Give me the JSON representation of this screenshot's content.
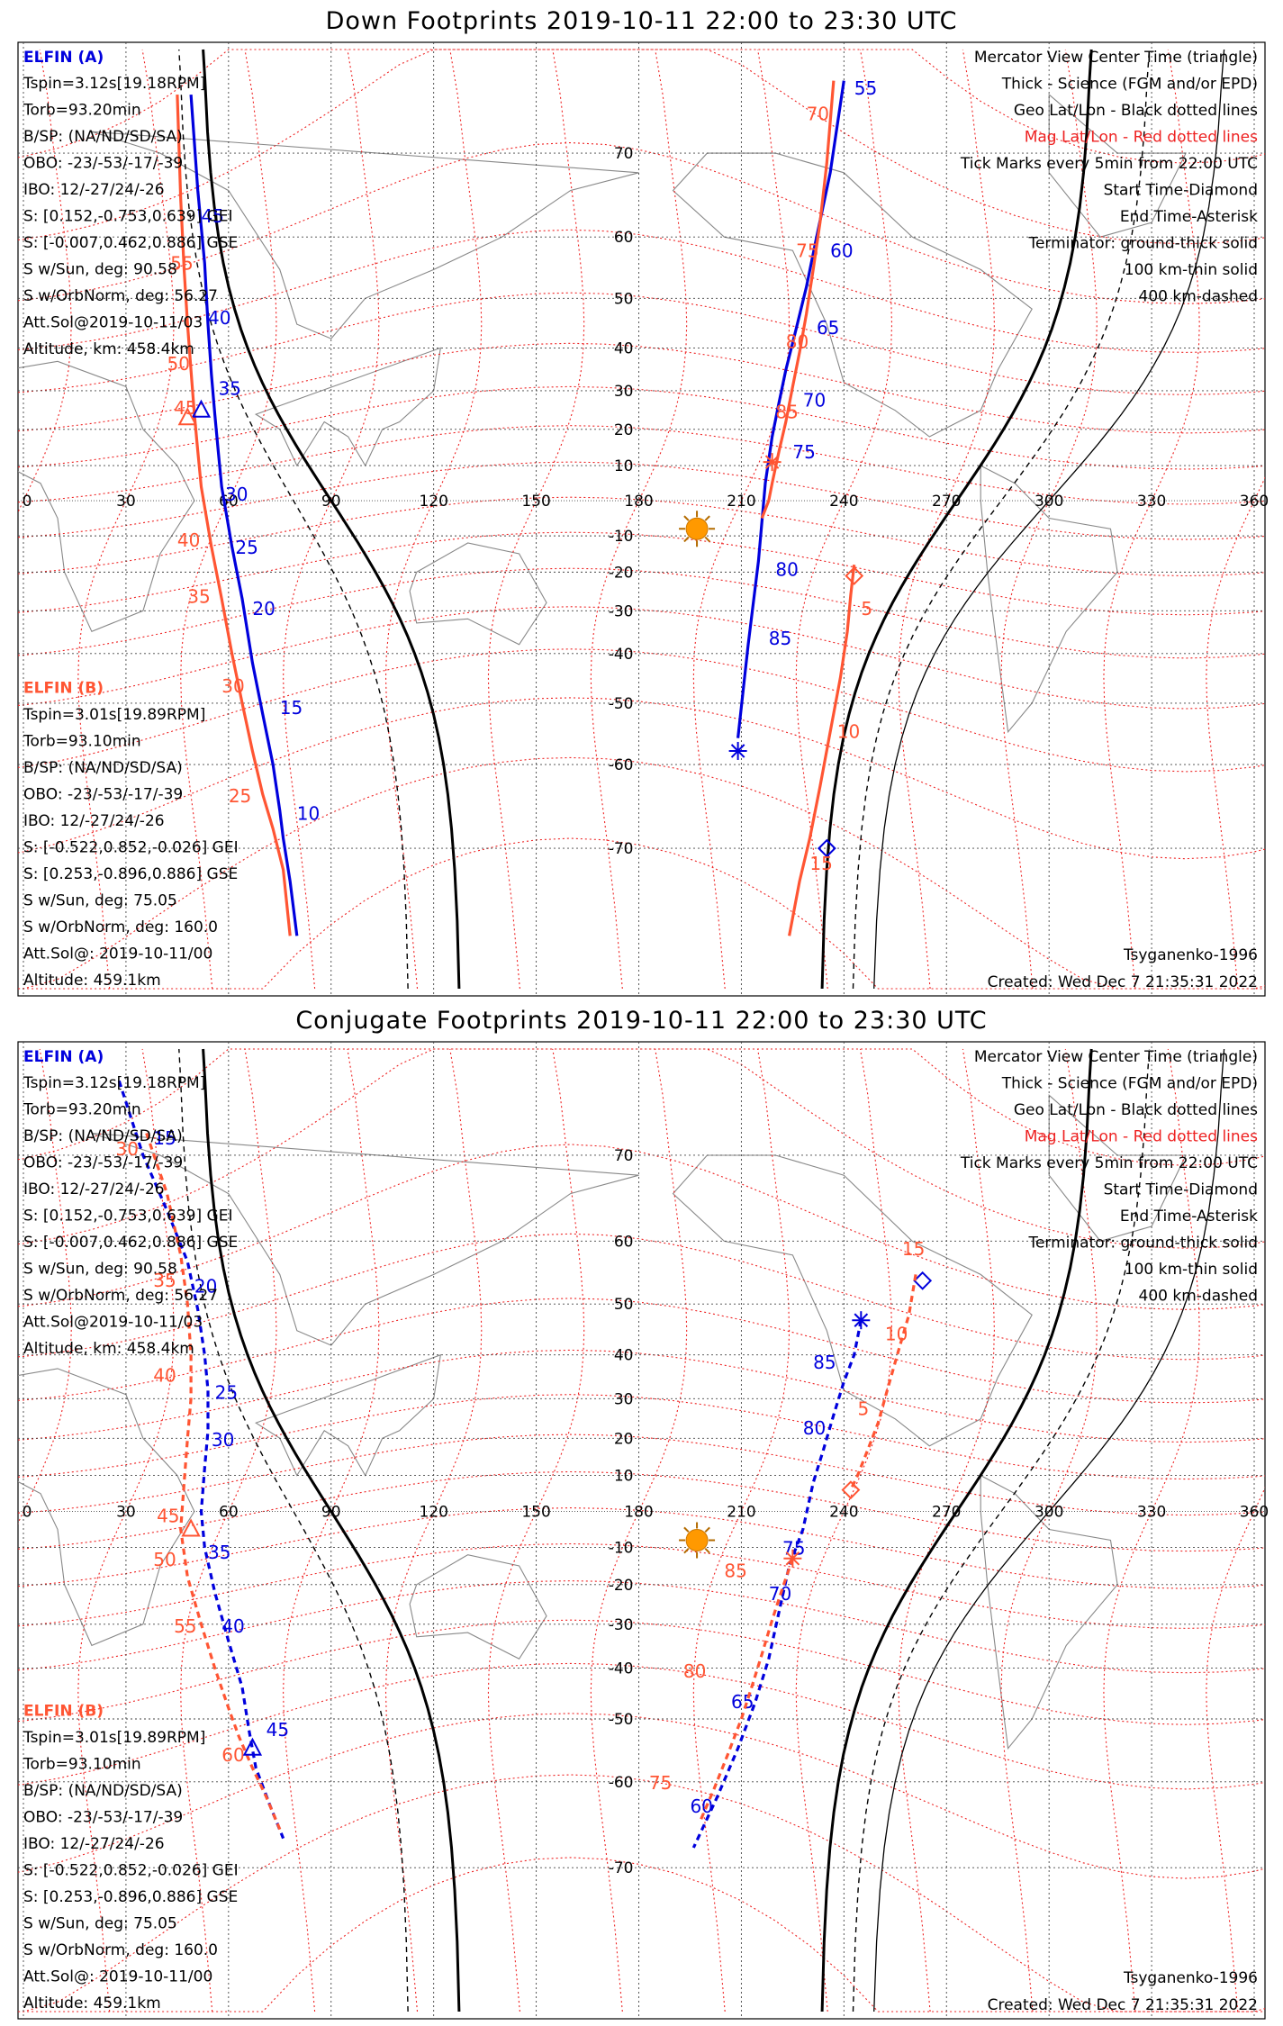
{
  "colors": {
    "spacecraft_a": "#0000dd",
    "spacecraft_b": "#ff5533",
    "geo_grid": "#444444",
    "mag_grid": "#ee2222",
    "terminator": "#000000",
    "sun": "#ff9900",
    "coastline": "#888888"
  },
  "legend": {
    "lines": [
      {
        "text": "Mercator View Center Time (triangle)",
        "color": "#000000"
      },
      {
        "text": "Thick - Science (FGM and/or EPD)",
        "color": "#000000"
      },
      {
        "text": "Geo Lat/Lon - Black dotted lines",
        "color": "#000000"
      },
      {
        "text": "Mag Lat/Lon - Red dotted lines",
        "color": "#ee2222"
      },
      {
        "text": "Tick Marks every 5min from 22:00 UTC",
        "color": "#000000"
      },
      {
        "text": "Start Time-Diamond",
        "color": "#000000"
      },
      {
        "text": "End Time-Asterisk",
        "color": "#000000"
      },
      {
        "text": "Terminator: ground-thick solid",
        "color": "#000000"
      },
      {
        "text": "100 km-thin solid",
        "color": "#000000"
      },
      {
        "text": "400 km-dashed",
        "color": "#000000"
      }
    ]
  },
  "elfin_a": {
    "name": "ELFIN (A)",
    "lines": [
      "Tspin=3.12s[19.18RPM]",
      "Torb=93.20min",
      "B/SP: (NA/ND/SD/SA)",
      "OBO: -23/-53/-17/-39",
      "IBO: 12/-27/24/-26",
      "S: [0.152,-0.753,0.639] GEI",
      "S: [-0.007,0.462,0.886] GSE",
      "S w/Sun, deg: 90.58",
      "S w/OrbNorm, deg: 56.27",
      "Att.Sol@2019-10-11/03",
      "Altitude, km: 458.4km"
    ]
  },
  "elfin_b": {
    "name": "ELFIN (B)",
    "lines": [
      "Tspin=3.01s[19.89RPM]",
      "Torb=93.10min",
      "B/SP: (NA/ND/SD/SA)",
      "OBO: -23/-53/-17/-39",
      "IBO: 12/-27/24/-26",
      "S: [-0.522,0.852,-0.026] GEI",
      "S: [0.253,-0.896,0.886] GSE",
      "S w/Sun, deg: 75.05",
      "S w/OrbNorm, deg: 160.0",
      "Att.Sol@: 2019-10-11/00",
      "Altitude: 459.1km"
    ]
  },
  "model": "Tsyganenko-1996",
  "created": "Created: Wed Dec  7 21:35:31 2022",
  "chart_data": [
    {
      "type": "line",
      "title": "Down Footprints 2019-10-11 22:00 to 23:30 UTC",
      "projection": "mercator",
      "x_ticks": [
        0,
        30,
        60,
        90,
        120,
        150,
        180,
        210,
        240,
        270,
        300,
        330,
        360
      ],
      "y_ticks": [
        70,
        60,
        50,
        40,
        30,
        20,
        10,
        -10,
        -20,
        -30,
        -40,
        -50,
        -60,
        -70
      ],
      "sun": {
        "lon": 197,
        "lat": -8
      },
      "series": [
        {
          "name": "ELFIN (A)",
          "style": "solid",
          "x": [
            48,
            50,
            52,
            54,
            55,
            56,
            57,
            58,
            59,
            63,
            66,
            69,
            73,
            77,
            80
          ],
          "y": [
            75,
            62,
            48,
            34,
            20,
            10,
            0,
            -10,
            -22,
            -35,
            -50,
            -60,
            -66,
            -72,
            -77
          ],
          "segments": [
            {
              "x": [
                49,
                51,
                53,
                54,
                55,
                56,
                57,
                58,
                61,
                64,
                67,
                70,
                73,
                75,
                76,
                78,
                80
              ],
              "y": [
                75,
                66,
                56,
                45,
                34,
                24,
                14,
                4,
                -13,
                -27,
                -42,
                -52,
                -60,
                -66,
                -69,
                -73,
                -77
              ]
            },
            {
              "x": [
                240,
                236,
                232,
                229,
                226,
                223,
                221,
                219,
                217,
                215,
                212,
                209
              ],
              "y": [
                76,
                68,
                60,
                52,
                44,
                35,
                27,
                18,
                5,
                -17,
                -38,
                -56
              ]
            }
          ],
          "tick_labels": [
            {
              "label": "55",
              "lon": 243,
              "lat": 75
            },
            {
              "label": "60",
              "lon": 236,
              "lat": 57
            },
            {
              "label": "65",
              "lon": 232,
              "lat": 43
            },
            {
              "label": "70",
              "lon": 228,
              "lat": 26
            },
            {
              "label": "75",
              "lon": 225,
              "lat": 12
            },
            {
              "label": "80",
              "lon": 220,
              "lat": -21
            },
            {
              "label": "85",
              "lon": 218,
              "lat": -38
            },
            {
              "label": "45",
              "lon": 52,
              "lat": 62
            },
            {
              "label": "40",
              "lon": 54,
              "lat": 45
            },
            {
              "label": "35",
              "lon": 57,
              "lat": 29
            },
            {
              "label": "30",
              "lon": 59,
              "lat": 0
            },
            {
              "label": "25",
              "lon": 62,
              "lat": -15
            },
            {
              "label": "20",
              "lon": 67,
              "lat": -31
            },
            {
              "label": "15",
              "lon": 75,
              "lat": -52
            },
            {
              "label": "10",
              "lon": 80,
              "lat": -67
            }
          ],
          "start": {
            "lon": 235,
            "lat": -70
          },
          "end": {
            "lon": 209,
            "lat": -58
          }
        },
        {
          "name": "ELFIN (B)",
          "style": "solid",
          "segments": [
            {
              "x": [
                45,
                46,
                47,
                48,
                49,
                50,
                51,
                52,
                55,
                58,
                61,
                64,
                67,
                70,
                73,
                76,
                78
              ],
              "y": [
                75,
                65,
                55,
                45,
                35,
                24,
                14,
                4,
                -13,
                -27,
                -40,
                -50,
                -58,
                -64,
                -68,
                -72,
                -77
              ]
            },
            {
              "x": [
                237,
                235,
                233,
                231,
                229,
                227,
                225,
                223,
                221,
                219,
                218,
                216
              ],
              "y": [
                76,
                69,
                62,
                55,
                47,
                39,
                31,
                22,
                14,
                5,
                0,
                -5
              ]
            },
            {
              "x": [
                243,
                242,
                241,
                239,
                236,
                233,
                230,
                227,
                224
              ],
              "y": [
                -18,
                -26,
                -35,
                -45,
                -55,
                -63,
                -69,
                -73,
                -77
              ]
            }
          ],
          "tick_labels": [
            {
              "label": "70",
              "lon": 229,
              "lat": 73
            },
            {
              "label": "75",
              "lon": 226,
              "lat": 57
            },
            {
              "label": "80",
              "lon": 223,
              "lat": 40
            },
            {
              "label": "85",
              "lon": 220,
              "lat": 23
            },
            {
              "label": "5",
              "lon": 245,
              "lat": -31
            },
            {
              "label": "10",
              "lon": 238,
              "lat": -56
            },
            {
              "label": "15",
              "lon": 230,
              "lat": -72
            },
            {
              "label": "55",
              "lon": 43,
              "lat": 55
            },
            {
              "label": "50",
              "lon": 42,
              "lat": 35
            },
            {
              "label": "45",
              "lon": 44,
              "lat": 24
            },
            {
              "label": "40",
              "lon": 45,
              "lat": -13
            },
            {
              "label": "35",
              "lon": 48,
              "lat": -28
            },
            {
              "label": "30",
              "lon": 58,
              "lat": -48
            },
            {
              "label": "25",
              "lon": 60,
              "lat": -65
            }
          ],
          "start": {
            "lon": 243,
            "lat": -21
          },
          "end": {
            "lon": 219,
            "lat": 11
          }
        }
      ],
      "view_center": [
        {
          "series": "ELFIN (A)",
          "lon": 52,
          "lat": 25
        },
        {
          "series": "ELFIN (B)",
          "lon": 48,
          "lat": 23
        }
      ]
    },
    {
      "type": "line",
      "title": "Conjugate Footprints 2019-10-11 22:00 to 23:30 UTC",
      "projection": "mercator",
      "x_ticks": [
        0,
        30,
        60,
        90,
        120,
        150,
        180,
        210,
        240,
        270,
        300,
        330,
        360
      ],
      "y_ticks": [
        70,
        60,
        50,
        40,
        30,
        20,
        10,
        -10,
        -20,
        -30,
        -40,
        -50,
        -60,
        -70
      ],
      "sun": {
        "lon": 197,
        "lat": -8
      },
      "series": [
        {
          "name": "ELFIN (A)",
          "style": "dashed",
          "segments": [
            {
              "x": [
                28,
                35,
                42,
                48,
                51,
                53,
                54,
                54,
                53,
                52,
                53,
                56,
                60,
                64,
                66,
                68,
                72,
                76
              ],
              "y": [
                76,
                70,
                64,
                57,
                49,
                40,
                32,
                22,
                12,
                0,
                -10,
                -22,
                -34,
                -44,
                -52,
                -58,
                -63,
                -67
              ]
            },
            {
              "x": [
                245,
                243,
                240,
                237,
                234,
                231,
                228,
                224,
                221,
                218,
                214,
                209,
                203,
                196
              ],
              "y": [
                47,
                40,
                34,
                26,
                17,
                8,
                -5,
                -15,
                -27,
                -38,
                -47,
                -55,
                -62,
                -68
              ]
            }
          ],
          "tick_labels": [
            {
              "label": "15",
              "lon": 38,
              "lat": 71
            },
            {
              "label": "20",
              "lon": 50,
              "lat": 52
            },
            {
              "label": "25",
              "lon": 56,
              "lat": 30
            },
            {
              "label": "30",
              "lon": 55,
              "lat": 18
            },
            {
              "label": "35",
              "lon": 54,
              "lat": -13
            },
            {
              "label": "40",
              "lon": 58,
              "lat": -32
            },
            {
              "label": "45",
              "lon": 71,
              "lat": -53
            },
            {
              "label": "85",
              "lon": 231,
              "lat": 37
            },
            {
              "label": "80",
              "lon": 228,
              "lat": 21
            },
            {
              "label": "75",
              "lon": 222,
              "lat": -12
            },
            {
              "label": "70",
              "lon": 218,
              "lat": -24
            },
            {
              "label": "65",
              "lon": 207,
              "lat": -48
            },
            {
              "label": "60",
              "lon": 195,
              "lat": -64
            }
          ],
          "start": {
            "lon": 263,
            "lat": 54
          },
          "end": {
            "lon": 245,
            "lat": 47
          }
        },
        {
          "name": "ELFIN (B)",
          "style": "dashed",
          "segments": [
            {
              "x": [
                36,
                42,
                46,
                48,
                49,
                49,
                48,
                47,
                46,
                48,
                52,
                56,
                60,
                63,
                67,
                71,
                75
              ],
              "y": [
                72,
                66,
                58,
                50,
                40,
                30,
                20,
                8,
                -5,
                -18,
                -30,
                -40,
                -48,
                -53,
                -58,
                -62,
                -66
              ]
            },
            {
              "x": [
                261,
                259,
                256,
                253,
                250,
                247,
                244,
                242
              ],
              "y": [
                55,
                48,
                41,
                33,
                24,
                17,
                10,
                6
              ]
            },
            {
              "x": [
                225,
                222,
                219,
                216,
                213,
                210,
                206,
                202,
                198
              ],
              "y": [
                -13,
                -21,
                -29,
                -37,
                -44,
                -50,
                -56,
                -61,
                -65
              ]
            }
          ],
          "tick_labels": [
            {
              "label": "30",
              "lon": 27,
              "lat": 70
            },
            {
              "label": "35",
              "lon": 38,
              "lat": 53
            },
            {
              "label": "40",
              "lon": 38,
              "lat": 34
            },
            {
              "label": "45",
              "lon": 39,
              "lat": -3
            },
            {
              "label": "50",
              "lon": 38,
              "lat": -15
            },
            {
              "label": "55",
              "lon": 44,
              "lat": -32
            },
            {
              "label": "60",
              "lon": 58,
              "lat": -57
            },
            {
              "label": "15",
              "lon": 257,
              "lat": 58
            },
            {
              "label": "10",
              "lon": 252,
              "lat": 43
            },
            {
              "label": "5",
              "lon": 244,
              "lat": 26
            },
            {
              "label": "85",
              "lon": 205,
              "lat": -18
            },
            {
              "label": "80",
              "lon": 193,
              "lat": -42
            },
            {
              "label": "75",
              "lon": 183,
              "lat": -61
            }
          ],
          "start": {
            "lon": 242,
            "lat": 6
          },
          "end": {
            "lon": 225,
            "lat": -13
          }
        }
      ],
      "view_center": [
        {
          "series": "ELFIN (A)",
          "lon": 67,
          "lat": -55
        },
        {
          "series": "ELFIN (B)",
          "lon": 49,
          "lat": -5
        }
      ]
    }
  ]
}
